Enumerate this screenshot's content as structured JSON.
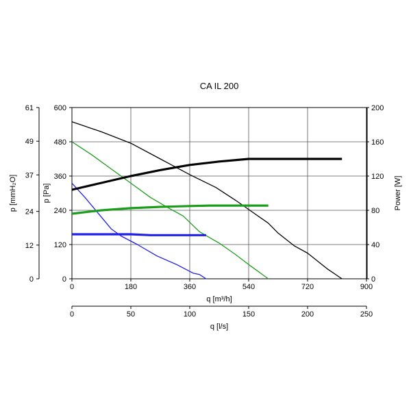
{
  "chart_data": {
    "type": "line",
    "title": "CA IL 200",
    "grid": true,
    "x_axis": {
      "label": "q [m³/h]",
      "range": [
        0,
        900
      ],
      "ticks": [
        0,
        180,
        360,
        540,
        720,
        900
      ]
    },
    "x2_axis": {
      "label": "q [l/s]",
      "range": [
        0,
        250
      ],
      "ticks": [
        0,
        50,
        100,
        150,
        200,
        250
      ]
    },
    "y_axis": {
      "label": "p [Pa]",
      "range": [
        0,
        600
      ],
      "ticks": [
        0,
        120,
        240,
        360,
        480,
        600
      ]
    },
    "y_outer_axis": {
      "label": "p [mmH₂O]",
      "range": [
        0,
        61
      ],
      "ticks": [
        0,
        12,
        24,
        37,
        49,
        61
      ]
    },
    "y_right_axis": {
      "label": "Power [W]",
      "range": [
        0,
        200
      ],
      "ticks": [
        0,
        40,
        80,
        120,
        160,
        200
      ]
    },
    "series": [
      {
        "color": "#000000",
        "axis": "pressure",
        "style": "thin",
        "points": [
          [
            0,
            550
          ],
          [
            90,
            515
          ],
          [
            180,
            475
          ],
          [
            270,
            420
          ],
          [
            360,
            365
          ],
          [
            440,
            320
          ],
          [
            500,
            275
          ],
          [
            550,
            235
          ],
          [
            600,
            195
          ],
          [
            630,
            160
          ],
          [
            680,
            115
          ],
          [
            720,
            90
          ],
          [
            780,
            35
          ],
          [
            825,
            0
          ]
        ]
      },
      {
        "color": "#1a9e1a",
        "axis": "pressure",
        "style": "thin",
        "points": [
          [
            0,
            480
          ],
          [
            60,
            435
          ],
          [
            120,
            385
          ],
          [
            180,
            335
          ],
          [
            240,
            285
          ],
          [
            300,
            245
          ],
          [
            340,
            220
          ],
          [
            390,
            165
          ],
          [
            450,
            125
          ],
          [
            500,
            85
          ],
          [
            540,
            50
          ],
          [
            600,
            0
          ]
        ]
      },
      {
        "color": "#1f1fe6",
        "axis": "pressure",
        "style": "thin",
        "points": [
          [
            0,
            335
          ],
          [
            40,
            285
          ],
          [
            80,
            230
          ],
          [
            120,
            175
          ],
          [
            150,
            150
          ],
          [
            200,
            120
          ],
          [
            260,
            80
          ],
          [
            320,
            50
          ],
          [
            370,
            20
          ],
          [
            390,
            15
          ],
          [
            410,
            0
          ]
        ]
      },
      {
        "color": "#000000",
        "axis": "power",
        "style": "thick",
        "points": [
          [
            0,
            104
          ],
          [
            90,
            112
          ],
          [
            180,
            120
          ],
          [
            270,
            127
          ],
          [
            360,
            133
          ],
          [
            450,
            137
          ],
          [
            540,
            140
          ],
          [
            720,
            140
          ],
          [
            825,
            140
          ]
        ]
      },
      {
        "color": "#1a9e1a",
        "axis": "power",
        "style": "thick",
        "points": [
          [
            0,
            76
          ],
          [
            90,
            80
          ],
          [
            180,
            82.5
          ],
          [
            270,
            84
          ],
          [
            360,
            85
          ],
          [
            420,
            85.5
          ],
          [
            600,
            85.5
          ]
        ]
      },
      {
        "color": "#1f1fe6",
        "axis": "power",
        "style": "thick",
        "points": [
          [
            0,
            52
          ],
          [
            180,
            52
          ],
          [
            240,
            51
          ],
          [
            410,
            51
          ]
        ]
      }
    ]
  }
}
